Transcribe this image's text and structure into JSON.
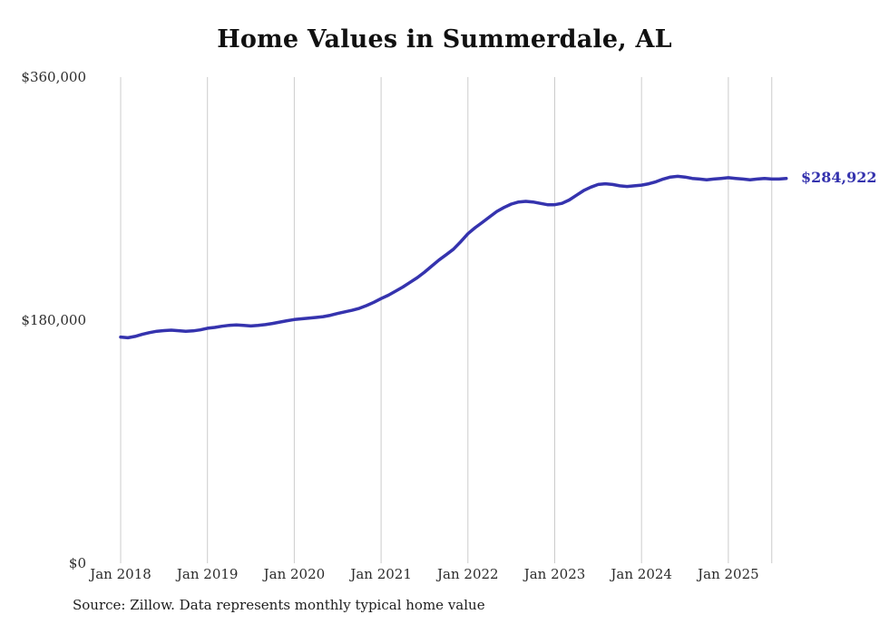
{
  "title": "Home Values in Summerdale, AL",
  "source_note": "Source: Zillow. Data represents monthly typical home value",
  "colors": {
    "line": "#3533ae",
    "grid": "#cccccc",
    "tick_text": "#2b2b2b",
    "title_text": "#111111"
  },
  "chart_data": {
    "type": "line",
    "title": "Home Values in Summerdale, AL",
    "xlabel": "",
    "ylabel": "",
    "ylim": [
      0,
      360000
    ],
    "grid": "vertical-only",
    "legend": "none",
    "yticks": [
      {
        "value": 0,
        "label": "$0"
      },
      {
        "value": 180000,
        "label": "$180,000"
      },
      {
        "value": 360000,
        "label": "$360,000"
      }
    ],
    "xticks": [
      "Jan 2018",
      "Jan 2019",
      "Jan 2020",
      "Jan 2021",
      "Jan 2022",
      "Jan 2023",
      "Jan 2024",
      "Jan 2025"
    ],
    "x_start": "Jan 2018",
    "x_interval": "month",
    "series": [
      {
        "name": "Typical home value",
        "values": [
          167500,
          167000,
          168000,
          169500,
          170800,
          171800,
          172300,
          172600,
          172200,
          171800,
          172100,
          172800,
          174000,
          174600,
          175500,
          176200,
          176500,
          176100,
          175700,
          176100,
          176700,
          177600,
          178600,
          179600,
          180500,
          181000,
          181500,
          182000,
          182600,
          183600,
          185000,
          186200,
          187300,
          188800,
          190800,
          193200,
          196000,
          198500,
          201500,
          204500,
          208000,
          211500,
          215500,
          220000,
          224500,
          228500,
          232500,
          238000,
          244000,
          248500,
          252500,
          256500,
          260500,
          263500,
          266000,
          267500,
          268000,
          267500,
          266500,
          265500,
          265500,
          266500,
          269000,
          272500,
          276000,
          278500,
          280500,
          281000,
          280500,
          279500,
          279000,
          279500,
          280000,
          281000,
          282500,
          284500,
          286000,
          286500,
          286000,
          285000,
          284500,
          284000,
          284500,
          285000,
          285500,
          285000,
          284500,
          284000,
          284500,
          285000,
          284500,
          284500,
          284922
        ]
      }
    ],
    "final_value": 284922,
    "final_label": "$284,922"
  }
}
